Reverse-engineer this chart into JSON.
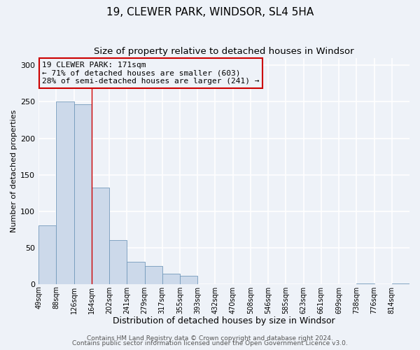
{
  "title": "19, CLEWER PARK, WINDSOR, SL4 5HA",
  "subtitle": "Size of property relative to detached houses in Windsor",
  "xlabel": "Distribution of detached houses by size in Windsor",
  "ylabel": "Number of detached properties",
  "bar_color": "#ccd9ea",
  "bar_edge_color": "#7399bb",
  "bar_heights": [
    80,
    250,
    247,
    132,
    60,
    30,
    25,
    14,
    11,
    0,
    0,
    0,
    0,
    0,
    0,
    0,
    0,
    0,
    1,
    0,
    1
  ],
  "bin_labels": [
    "49sqm",
    "88sqm",
    "126sqm",
    "164sqm",
    "202sqm",
    "241sqm",
    "279sqm",
    "317sqm",
    "355sqm",
    "393sqm",
    "432sqm",
    "470sqm",
    "508sqm",
    "546sqm",
    "585sqm",
    "623sqm",
    "661sqm",
    "699sqm",
    "738sqm",
    "776sqm",
    "814sqm"
  ],
  "vline_x_idx": 3,
  "vline_color": "#cc0000",
  "ylim": [
    0,
    310
  ],
  "yticks": [
    0,
    50,
    100,
    150,
    200,
    250,
    300
  ],
  "annotation_title": "19 CLEWER PARK: 171sqm",
  "annotation_line1": "← 71% of detached houses are smaller (603)",
  "annotation_line2": "28% of semi-detached houses are larger (241) →",
  "annotation_box_color": "#cc0000",
  "footer1": "Contains HM Land Registry data © Crown copyright and database right 2024.",
  "footer2": "Contains public sector information licensed under the Open Government Licence v3.0.",
  "bg_color": "#eef2f8",
  "grid_color": "#ffffff",
  "title_fontsize": 11,
  "subtitle_fontsize": 9.5,
  "xlabel_fontsize": 9,
  "ylabel_fontsize": 8,
  "tick_fontsize": 7,
  "ytick_fontsize": 8,
  "footer_fontsize": 6.5,
  "ann_fontsize": 8
}
